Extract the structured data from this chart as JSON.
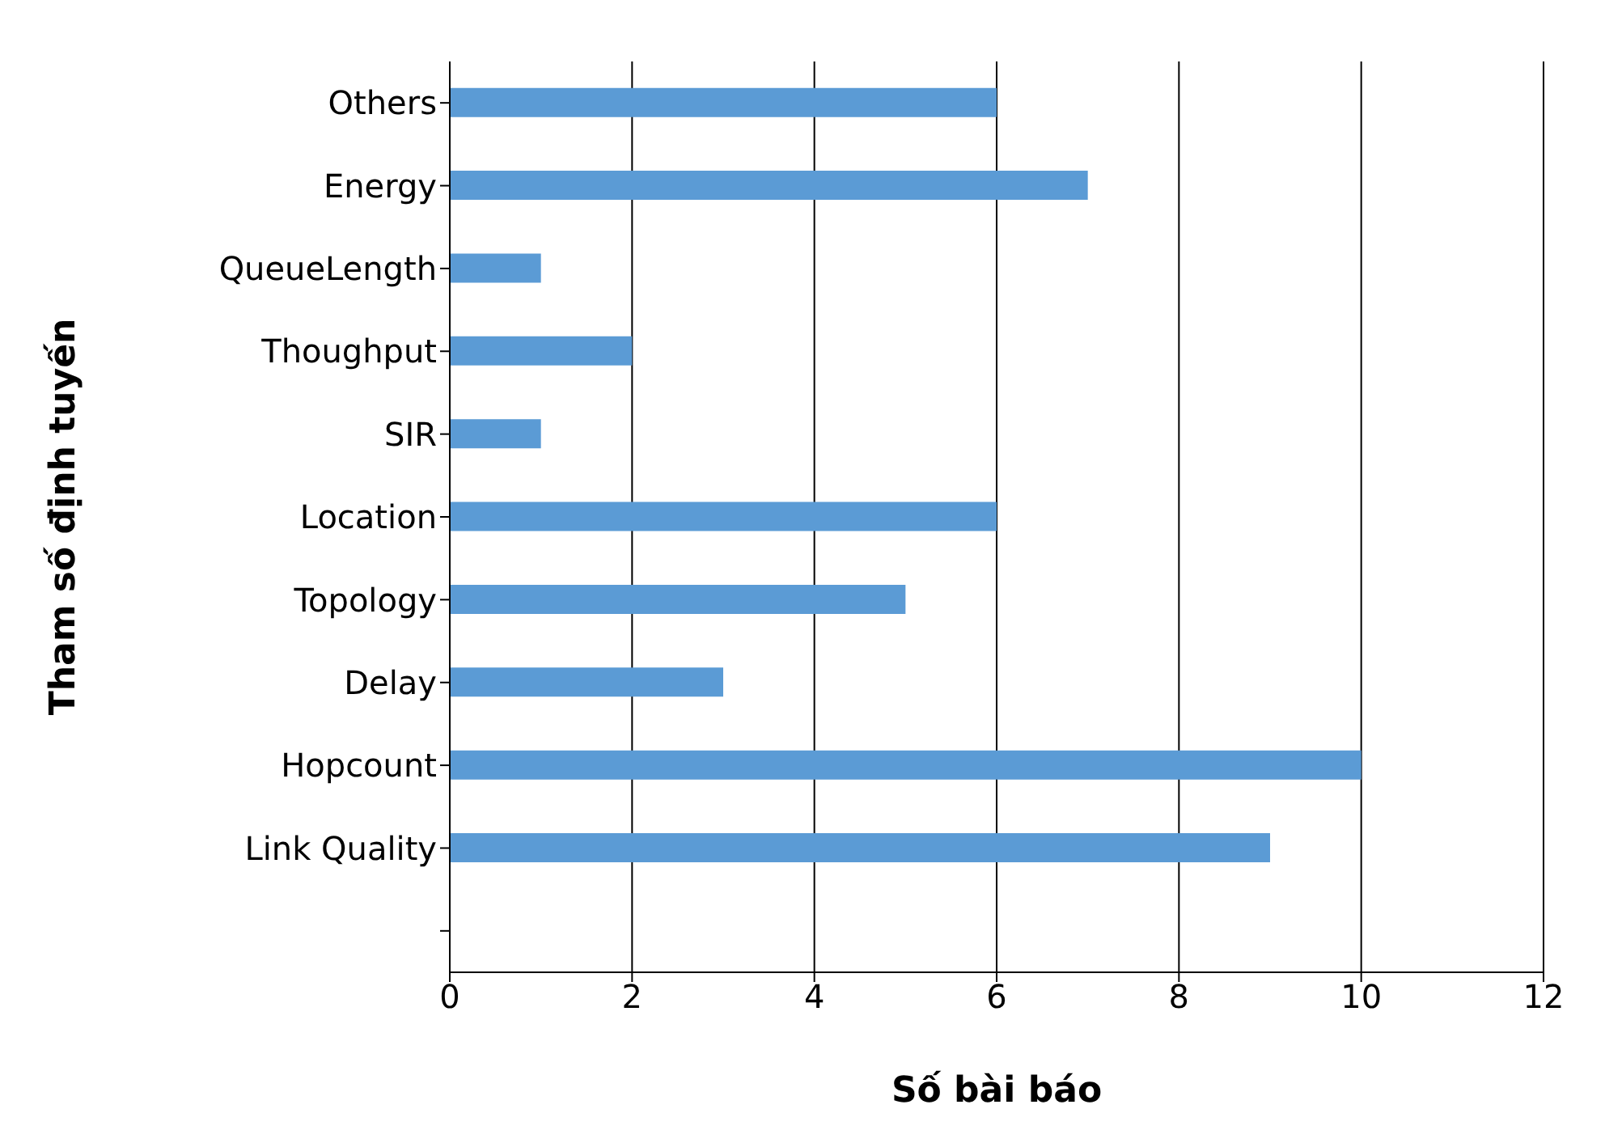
{
  "chart_data": {
    "type": "bar",
    "orientation": "horizontal",
    "xlabel": "Số bài báo",
    "ylabel": "Tham số định tuyến",
    "categories": [
      "Others",
      "Energy",
      "QueueLength",
      "Thoughput",
      "SIR",
      "Location",
      "Topology",
      "Delay",
      "Hopcount",
      "Link Quality",
      null
    ],
    "values": [
      6,
      7,
      1,
      2,
      1,
      6,
      5,
      3,
      10,
      9,
      null
    ],
    "color": "#5b9bd5",
    "xlim": [
      0,
      12
    ],
    "xticks": [
      0,
      2,
      4,
      6,
      8,
      10,
      12
    ],
    "grid": "x",
    "legend": false
  }
}
